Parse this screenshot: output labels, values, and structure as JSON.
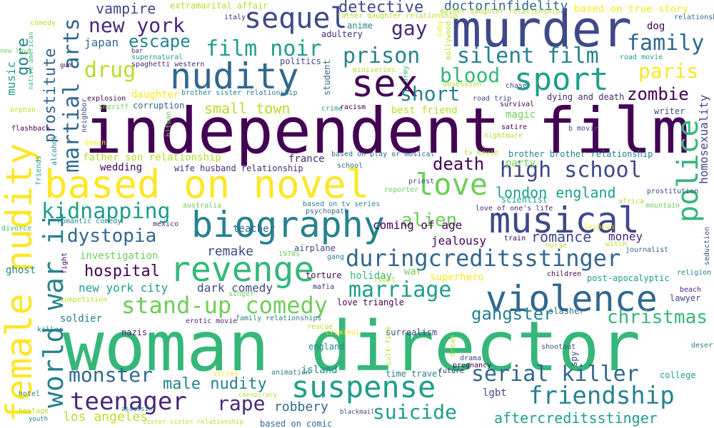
{
  "palette": {
    "dark_purple": "#440154",
    "purple": "#482878",
    "indigo": "#3e4989",
    "blue": "#31688e",
    "teal_blue": "#26828e",
    "teal": "#1f9e89",
    "green": "#35b779",
    "light_green": "#6ece58",
    "yellow_green": "#b5de2b",
    "yellow": "#fde725"
  },
  "words": [
    "independent film",
    "woman director",
    "murder",
    "nudity",
    "sex",
    "based on novel",
    "biography",
    "musical",
    "female nudity",
    "violence",
    "revenge",
    "sport",
    "suspense",
    "duringcreditsstinger",
    "love",
    "sequel",
    "teenager",
    "friendship",
    "police",
    "world war ii",
    "stand-up comedy",
    "film noir",
    "prison",
    "silent film",
    "high school",
    "new york",
    "family",
    "drug",
    "martial arts",
    "serial killer",
    "kidnapping",
    "dystopia",
    "marriage",
    "paris",
    "rape",
    "blood",
    "short",
    "suicide",
    "monster",
    "male nudity",
    "gay",
    "detective",
    "doctorinfidelity",
    "escape",
    "alien",
    "death",
    "zombie",
    "christmas",
    "gangster",
    "london england",
    "hospital",
    "aftercreditsstinger",
    "small town",
    "romance",
    "money",
    "coming of age",
    "remake",
    "prostitute",
    "gore",
    "vampire",
    "japan",
    "music",
    "homosexuality",
    "robbery",
    "los angeles",
    "new york city",
    "dark comedy",
    "holiday",
    "war",
    "superhero",
    "jealousy",
    "based on true story",
    "dog",
    "party",
    "father son relationship",
    "wedding",
    "wife husband relationship",
    "france",
    "investigation",
    "teacher",
    "ghost",
    "soldier",
    "nazis",
    "island",
    "lgbt",
    "england",
    "surrealism",
    "christmas",
    "college",
    "spy",
    "slasher",
    "magic",
    "best friend",
    "anime",
    "adultery",
    "daughter",
    "corruption",
    "extramarital affair",
    "brother brother relationship",
    "post-apocalyptic",
    "love triangle",
    "based on comic",
    "airplane",
    "torture",
    "writer",
    "scientist",
    "lawyer",
    "time travel",
    "animation",
    "secret",
    "dying and death",
    "brother sister relationship",
    "supernatural",
    "spaghetti western",
    "politics",
    "student",
    "italy",
    "father daughter relationship",
    "mother daughter relationship",
    "relationship",
    "bollywood",
    "baby",
    "miniseries",
    "army",
    "obsession",
    "road movie",
    "chase",
    "survival",
    "road trip",
    "b movie",
    "explosion",
    "sheriff",
    "crime",
    "racism",
    "nightmare",
    "satire",
    "tv movie",
    "based on play or musical",
    "school",
    "priest",
    "reporter",
    "prostitution",
    "africa",
    "mountain",
    "love of one's life",
    "psychopath",
    "based on tv series",
    "australia",
    "mexico",
    "romantic comedy",
    "divorce",
    "friends",
    "alcohol",
    "orphan",
    "flashback",
    "neighbor",
    "demon",
    "hitman",
    "fight",
    "1970s",
    "gang",
    "robot",
    "mafia",
    "singer",
    "erotic movie",
    "family relationships",
    "competition",
    "killer",
    "rescue",
    "criminal",
    "cult film",
    "dream",
    "drama",
    "pregnancy",
    "future",
    "shootout",
    "desert",
    "beach",
    "religion",
    "seduction",
    "train",
    "nurse",
    "witch",
    "journalist",
    "children",
    "lesbian",
    "comedy",
    "new love",
    "native american",
    "gun",
    "bar",
    "hotel",
    "hostage",
    "youth",
    "assassin",
    "conspiracy",
    "sister sister relationship",
    "blackmail"
  ]
}
